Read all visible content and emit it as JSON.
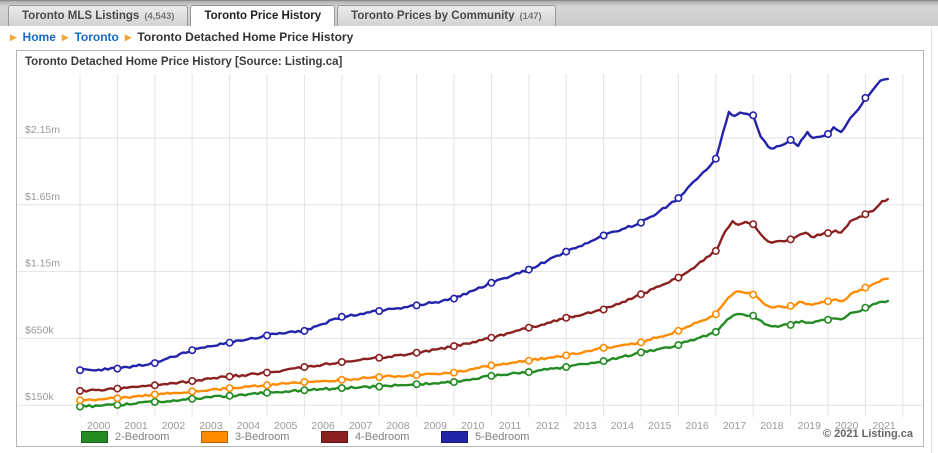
{
  "tabs": [
    {
      "label": "Toronto MLS Listings",
      "count": "(4,543)",
      "active": false
    },
    {
      "label": "Toronto Price History",
      "count": "",
      "active": true
    },
    {
      "label": "Toronto Prices by Community",
      "count": "(147)",
      "active": false
    }
  ],
  "breadcrumb": {
    "arrow": "▶",
    "items": [
      {
        "label": "Home"
      },
      {
        "label": "Toronto"
      },
      {
        "label": "Toronto Detached Home Price History"
      }
    ]
  },
  "panel": {
    "title": "Toronto Detached Home Price History [Source: Listing.ca]",
    "copyright": "© 2021 Listing.ca"
  },
  "colors": {
    "link_blue": "#1569c7",
    "breadcrumb_arrow": "#f2a73d",
    "gridline": "#e3e3e3",
    "axis_text": "#999999",
    "green": "#228b22",
    "orange": "#ff8c00",
    "dark_red": "#8b2020",
    "navy_blue": "#2222aa"
  },
  "chart_data": {
    "type": "line",
    "title": "Toronto Detached Home Price History [Source: Listing.ca]",
    "values_unit": "CAD thousands of dollars; x = year",
    "grid": true,
    "legend_position": "bottom",
    "x_categories": [
      "2000",
      "2001",
      "2002",
      "2003",
      "2004",
      "2005",
      "2006",
      "2007",
      "2008",
      "2009",
      "2010",
      "2011",
      "2012",
      "2013",
      "2014",
      "2015",
      "2016",
      "2017",
      "2018",
      "2019",
      "2020",
      "2021"
    ],
    "x_range": [
      2000,
      2022
    ],
    "ylim_k": [
      75,
      2650
    ],
    "y_ticks": [
      {
        "label": "$2.15m",
        "value": 2150
      },
      {
        "label": "$1.65m",
        "value": 1650
      },
      {
        "label": "$1.15m",
        "value": 1150
      },
      {
        "label": "$650k",
        "value": 650
      },
      {
        "label": "$150k",
        "value": 150
      }
    ],
    "marker_at_integer_years": true,
    "series": [
      {
        "name": "2-Bedroom",
        "color": "#228b22",
        "points": [
          [
            2000,
            140
          ],
          [
            2000.5,
            146
          ],
          [
            2001,
            152
          ],
          [
            2001.5,
            163
          ],
          [
            2002,
            175
          ],
          [
            2002.5,
            187
          ],
          [
            2003,
            198
          ],
          [
            2003.5,
            209
          ],
          [
            2004,
            220
          ],
          [
            2004.5,
            232
          ],
          [
            2005,
            243
          ],
          [
            2005.5,
            253
          ],
          [
            2006,
            262
          ],
          [
            2006.5,
            270
          ],
          [
            2007,
            278
          ],
          [
            2007.5,
            284
          ],
          [
            2008,
            289
          ],
          [
            2008.5,
            298
          ],
          [
            2009,
            307
          ],
          [
            2009.5,
            315
          ],
          [
            2010,
            324
          ],
          [
            2010.5,
            347
          ],
          [
            2011,
            369
          ],
          [
            2011.5,
            384
          ],
          [
            2012,
            398
          ],
          [
            2012.5,
            417
          ],
          [
            2013,
            436
          ],
          [
            2013.5,
            458
          ],
          [
            2014,
            480
          ],
          [
            2014.5,
            512
          ],
          [
            2015,
            545
          ],
          [
            2015.5,
            572
          ],
          [
            2016,
            600
          ],
          [
            2016.5,
            650
          ],
          [
            2017,
            699
          ],
          [
            2017.3,
            790
          ],
          [
            2017.55,
            831
          ],
          [
            2017.75,
            828
          ],
          [
            2018,
            820
          ],
          [
            2018.3,
            758
          ],
          [
            2018.5,
            740
          ],
          [
            2018.75,
            746
          ],
          [
            2019,
            751
          ],
          [
            2019.3,
            781
          ],
          [
            2019.5,
            768
          ],
          [
            2019.75,
            780
          ],
          [
            2020,
            789
          ],
          [
            2020.15,
            800
          ],
          [
            2020.35,
            792
          ],
          [
            2020.6,
            841
          ],
          [
            2020.85,
            853
          ],
          [
            2021,
            880
          ],
          [
            2021.2,
            906
          ],
          [
            2021.45,
            925
          ],
          [
            2021.6,
            930
          ]
        ]
      },
      {
        "name": "3-Bedroom",
        "color": "#ff8c00",
        "points": [
          [
            2000,
            187
          ],
          [
            2000.5,
            195
          ],
          [
            2001,
            202
          ],
          [
            2001.5,
            216
          ],
          [
            2002,
            230
          ],
          [
            2002.5,
            242
          ],
          [
            2003,
            254
          ],
          [
            2003.5,
            266
          ],
          [
            2004,
            277
          ],
          [
            2004.5,
            288
          ],
          [
            2005,
            299
          ],
          [
            2005.5,
            312
          ],
          [
            2006,
            324
          ],
          [
            2006.5,
            332
          ],
          [
            2007,
            340
          ],
          [
            2007.5,
            350
          ],
          [
            2008,
            360
          ],
          [
            2008.5,
            368
          ],
          [
            2009,
            376
          ],
          [
            2009.5,
            385
          ],
          [
            2010,
            394
          ],
          [
            2010.5,
            420
          ],
          [
            2011,
            448
          ],
          [
            2011.5,
            466
          ],
          [
            2012,
            483
          ],
          [
            2012.5,
            503
          ],
          [
            2013,
            523
          ],
          [
            2013.5,
            551
          ],
          [
            2014,
            580
          ],
          [
            2014.5,
            600
          ],
          [
            2015,
            620
          ],
          [
            2015.5,
            663
          ],
          [
            2016,
            707
          ],
          [
            2016.5,
            768
          ],
          [
            2017,
            831
          ],
          [
            2017.25,
            925
          ],
          [
            2017.5,
            993
          ],
          [
            2017.65,
            1000
          ],
          [
            2017.8,
            990
          ],
          [
            2018,
            978
          ],
          [
            2018.3,
            905
          ],
          [
            2018.5,
            881
          ],
          [
            2018.75,
            887
          ],
          [
            2019,
            893
          ],
          [
            2019.3,
            923
          ],
          [
            2019.5,
            906
          ],
          [
            2019.75,
            913
          ],
          [
            2020,
            928
          ],
          [
            2020.2,
            943
          ],
          [
            2020.4,
            930
          ],
          [
            2020.6,
            980
          ],
          [
            2020.85,
            1012
          ],
          [
            2021,
            1030
          ],
          [
            2021.2,
            1055
          ],
          [
            2021.45,
            1090
          ],
          [
            2021.6,
            1097
          ]
        ]
      },
      {
        "name": "4-Bedroom",
        "color": "#8b2020",
        "points": [
          [
            2000,
            257
          ],
          [
            2000.5,
            265
          ],
          [
            2001,
            274
          ],
          [
            2001.5,
            286
          ],
          [
            2002,
            299
          ],
          [
            2002.5,
            315
          ],
          [
            2003,
            331
          ],
          [
            2003.5,
            348
          ],
          [
            2004,
            364
          ],
          [
            2004.5,
            379
          ],
          [
            2005,
            394
          ],
          [
            2005.5,
            415
          ],
          [
            2006,
            436
          ],
          [
            2006.5,
            455
          ],
          [
            2007,
            473
          ],
          [
            2007.5,
            489
          ],
          [
            2008,
            505
          ],
          [
            2008.5,
            524
          ],
          [
            2009,
            543
          ],
          [
            2009.5,
            567
          ],
          [
            2010,
            592
          ],
          [
            2010.5,
            623
          ],
          [
            2011,
            655
          ],
          [
            2011.5,
            692
          ],
          [
            2012,
            730
          ],
          [
            2012.5,
            767
          ],
          [
            2013,
            804
          ],
          [
            2013.5,
            835
          ],
          [
            2014,
            866
          ],
          [
            2014.5,
            922
          ],
          [
            2015,
            980
          ],
          [
            2015.5,
            1040
          ],
          [
            2016,
            1105
          ],
          [
            2016.5,
            1200
          ],
          [
            2017,
            1304
          ],
          [
            2017.25,
            1450
          ],
          [
            2017.45,
            1528
          ],
          [
            2017.6,
            1500
          ],
          [
            2017.8,
            1522
          ],
          [
            2018,
            1505
          ],
          [
            2018.2,
            1430
          ],
          [
            2018.4,
            1375
          ],
          [
            2018.5,
            1366
          ],
          [
            2018.75,
            1378
          ],
          [
            2019,
            1391
          ],
          [
            2019.25,
            1428
          ],
          [
            2019.4,
            1441
          ],
          [
            2019.55,
            1411
          ],
          [
            2019.8,
            1424
          ],
          [
            2020,
            1438
          ],
          [
            2020.2,
            1458
          ],
          [
            2020.35,
            1442
          ],
          [
            2020.6,
            1528
          ],
          [
            2020.85,
            1562
          ],
          [
            2021,
            1580
          ],
          [
            2021.2,
            1603
          ],
          [
            2021.45,
            1678
          ],
          [
            2021.6,
            1692
          ]
        ]
      },
      {
        "name": "5-Bedroom",
        "color": "#2222aa",
        "points": [
          [
            2000,
            412
          ],
          [
            2000.5,
            416
          ],
          [
            2001,
            424
          ],
          [
            2001.5,
            443
          ],
          [
            2002,
            465
          ],
          [
            2002.5,
            512
          ],
          [
            2003,
            562
          ],
          [
            2003.5,
            591
          ],
          [
            2004,
            618
          ],
          [
            2004.5,
            645
          ],
          [
            2005,
            672
          ],
          [
            2005.5,
            689
          ],
          [
            2006,
            706
          ],
          [
            2006.5,
            758
          ],
          [
            2007,
            812
          ],
          [
            2007.5,
            834
          ],
          [
            2008,
            855
          ],
          [
            2008.5,
            876
          ],
          [
            2009,
            897
          ],
          [
            2009.5,
            921
          ],
          [
            2010,
            948
          ],
          [
            2010.5,
            1006
          ],
          [
            2011,
            1066
          ],
          [
            2011.5,
            1114
          ],
          [
            2012,
            1165
          ],
          [
            2012.5,
            1232
          ],
          [
            2013,
            1300
          ],
          [
            2013.5,
            1360
          ],
          [
            2014,
            1420
          ],
          [
            2014.5,
            1468
          ],
          [
            2015,
            1516
          ],
          [
            2015.5,
            1604
          ],
          [
            2016,
            1700
          ],
          [
            2016.5,
            1843
          ],
          [
            2017,
            1995
          ],
          [
            2017.2,
            2200
          ],
          [
            2017.35,
            2345
          ],
          [
            2017.5,
            2315
          ],
          [
            2017.65,
            2340
          ],
          [
            2017.85,
            2330
          ],
          [
            2018,
            2320
          ],
          [
            2018.2,
            2160
          ],
          [
            2018.4,
            2085
          ],
          [
            2018.55,
            2072
          ],
          [
            2018.7,
            2090
          ],
          [
            2019,
            2135
          ],
          [
            2019.2,
            2090
          ],
          [
            2019.45,
            2195
          ],
          [
            2019.6,
            2150
          ],
          [
            2019.8,
            2160
          ],
          [
            2020,
            2180
          ],
          [
            2020.15,
            2230
          ],
          [
            2020.35,
            2195
          ],
          [
            2020.6,
            2300
          ],
          [
            2020.8,
            2360
          ],
          [
            2021,
            2450
          ],
          [
            2021.2,
            2510
          ],
          [
            2021.4,
            2580
          ],
          [
            2021.6,
            2592
          ]
        ]
      }
    ]
  }
}
